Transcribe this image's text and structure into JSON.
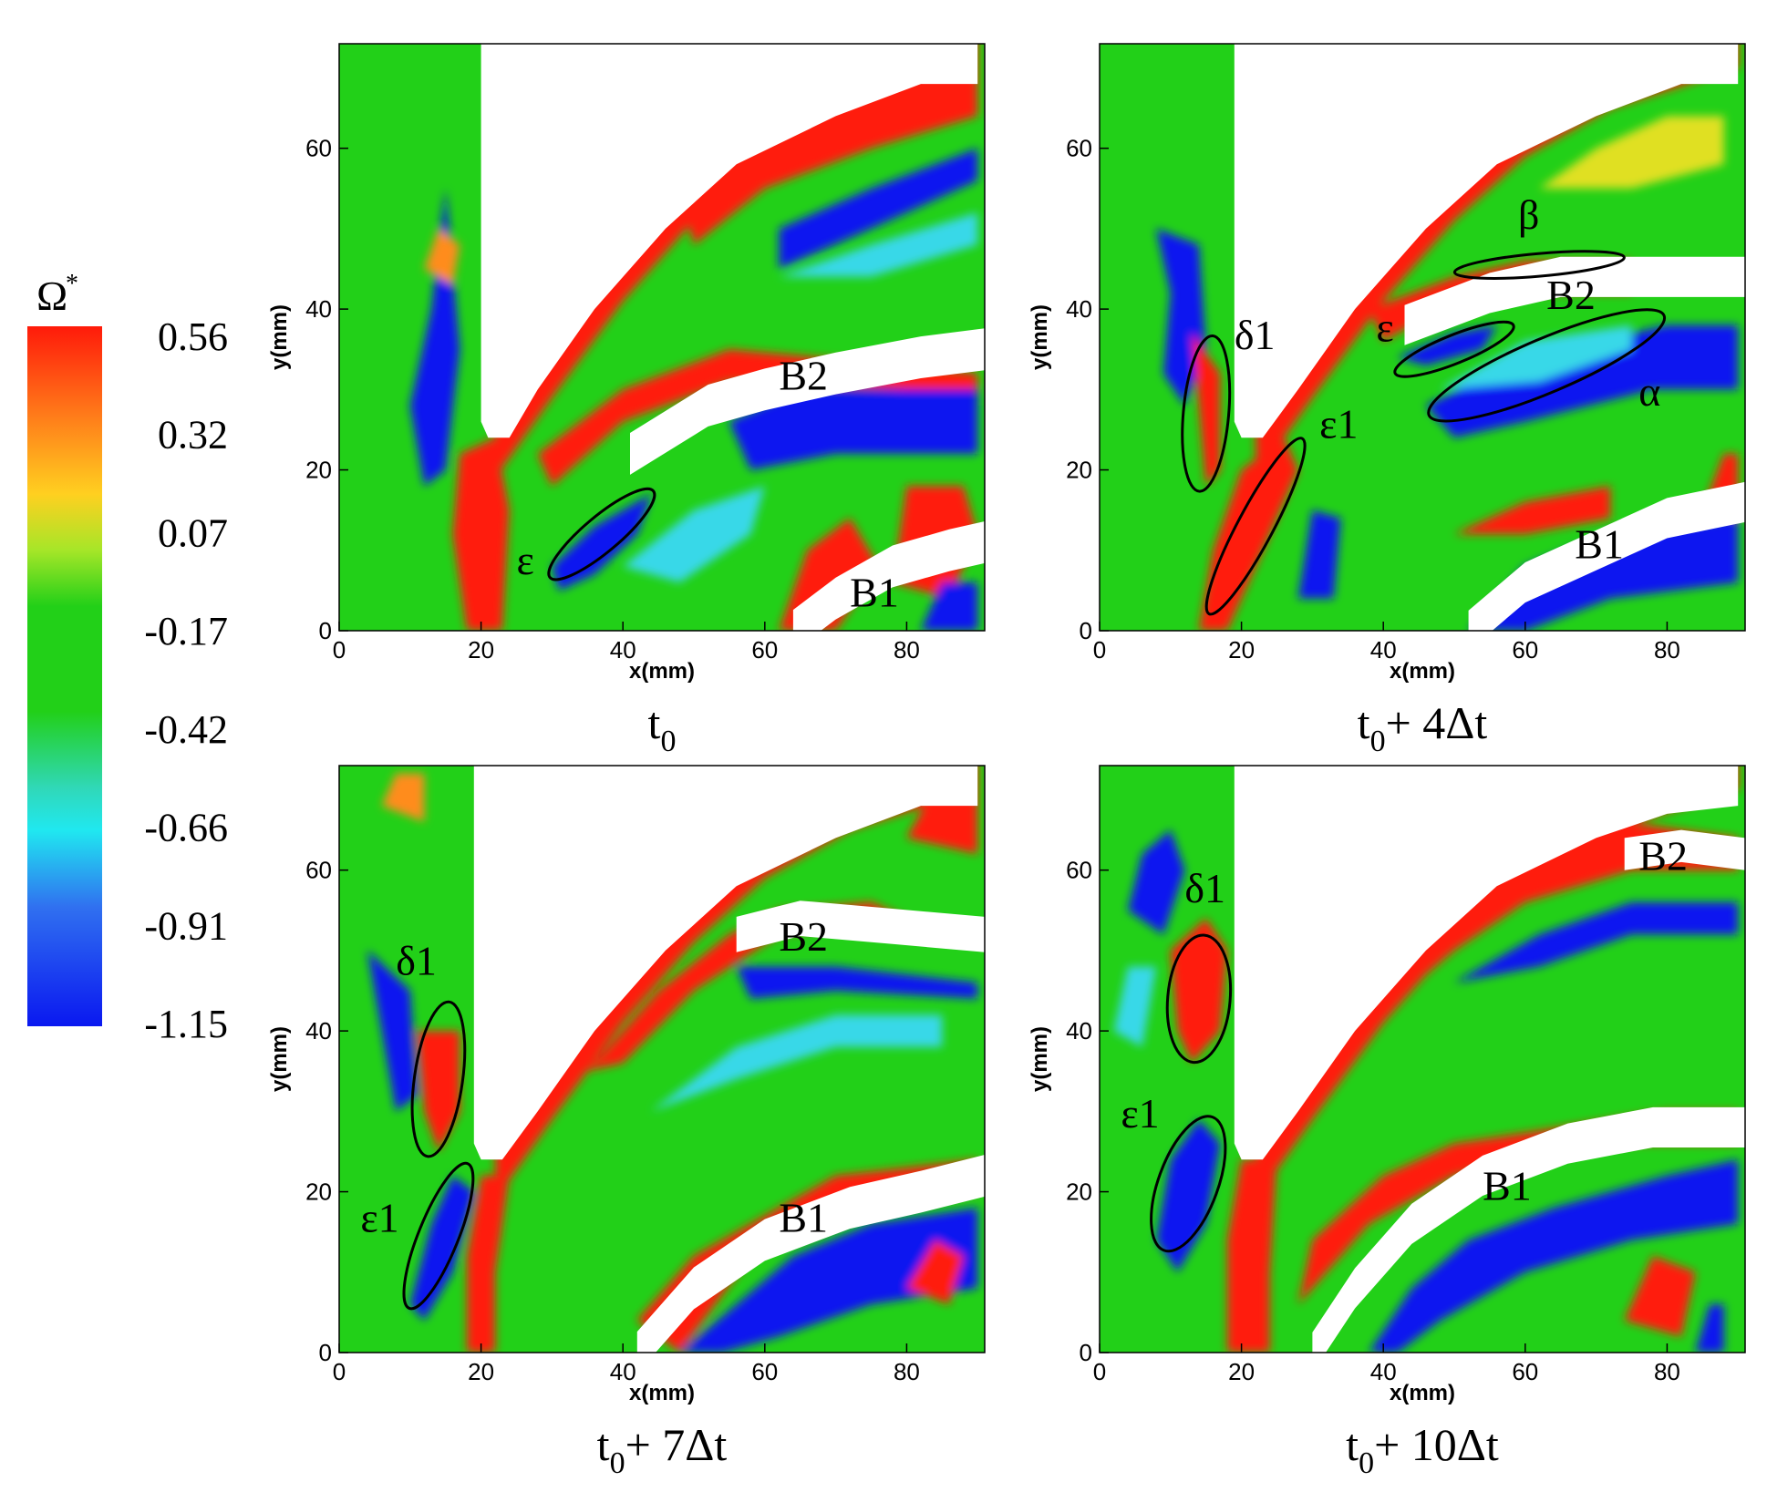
{
  "legend": {
    "symbol": "Ω",
    "superscript": "*",
    "ticks": [
      "0.56",
      "0.32",
      "0.07",
      "-0.17",
      "-0.42",
      "-0.66",
      "-0.91",
      "-1.15"
    ]
  },
  "colors": {
    "green": "#22d018",
    "red": "#ff1a0a",
    "blue": "#0a18f0",
    "cyan": "#38d8e8",
    "yellow": "#e0e020",
    "orange": "#ff8c1a",
    "white": "#ffffff"
  },
  "chart_data": {
    "type": "heatmap",
    "quantity": "Ω*",
    "colorbar": {
      "range": [
        -1.15,
        0.56
      ],
      "labels": [
        "0.56",
        "0.32",
        "0.07",
        "-0.17",
        "-0.42",
        "-0.66",
        "-0.91",
        "-1.15"
      ]
    },
    "xlabel": "x(mm)",
    "ylabel": "y(mm)",
    "xlim": [
      0,
      91
    ],
    "ylim": [
      0,
      73
    ],
    "xticks": [
      "0",
      "20",
      "40",
      "60",
      "80"
    ],
    "yticks": [
      "0",
      "20",
      "40",
      "60"
    ],
    "panels": [
      {
        "title_base": "t",
        "title_sub": "0",
        "title_rest": "",
        "annotations": [
          {
            "label": "ε",
            "cx": 37,
            "cy": 12,
            "rx": 9.5,
            "ry": 2.5,
            "angle": 40,
            "tx": 25,
            "ty": 7
          },
          {
            "label": "B2",
            "tx": 62,
            "ty": 30
          },
          {
            "label": "B1",
            "tx": 72,
            "ty": 3
          }
        ]
      },
      {
        "title_base": "t",
        "title_sub": "0",
        "title_rest": "+ 4Δt",
        "annotations": [
          {
            "label": "β",
            "cx": 62,
            "cy": 45.5,
            "rx": 12,
            "ry": 1.6,
            "angle": 5,
            "tx": 59,
            "ty": 50
          },
          {
            "label": "B2",
            "tx": 63,
            "ty": 40
          },
          {
            "label": "ε",
            "cx": 50,
            "cy": 35,
            "rx": 9,
            "ry": 2,
            "angle": 22,
            "tx": 39,
            "ty": 36
          },
          {
            "label": "δ1",
            "cx": 15,
            "cy": 27,
            "rx": 11,
            "ry": 3.2,
            "angle": 85,
            "tx": 19,
            "ty": 35
          },
          {
            "label": "ε1",
            "cx": 22,
            "cy": 13,
            "rx": 14,
            "ry": 2.5,
            "angle": 62,
            "tx": 31,
            "ty": 24
          },
          {
            "label": "α",
            "cx": 63,
            "cy": 33,
            "rx": 18,
            "ry": 3.8,
            "angle": 23,
            "tx": 76,
            "ty": 28
          },
          {
            "label": "B1",
            "tx": 67,
            "ty": 9
          }
        ]
      },
      {
        "title_base": "t",
        "title_sub": "0",
        "title_rest": "+ 7Δt",
        "annotations": [
          {
            "label": "δ1",
            "cx": 14,
            "cy": 34,
            "rx": 11,
            "ry": 3.4,
            "angle": 82,
            "tx": 8,
            "ty": 47
          },
          {
            "label": "ε1",
            "cx": 14,
            "cy": 14.5,
            "rx": 11,
            "ry": 2.8,
            "angle": 68,
            "tx": 3,
            "ty": 15
          },
          {
            "label": "B2",
            "tx": 62,
            "ty": 50
          },
          {
            "label": "B1",
            "tx": 62,
            "ty": 15
          }
        ]
      },
      {
        "title_base": "t",
        "title_sub": "0",
        "title_rest": "+ 10Δt",
        "annotations": [
          {
            "label": "δ1",
            "cx": 14,
            "cy": 44,
            "rx": 9,
            "ry": 4.4,
            "angle": 85,
            "tx": 12,
            "ty": 56
          },
          {
            "label": "ε1",
            "cx": 12.5,
            "cy": 21,
            "rx": 10,
            "ry": 4.2,
            "angle": 70,
            "tx": 3,
            "ty": 28
          },
          {
            "label": "B2",
            "tx": 76,
            "ty": 60
          },
          {
            "label": "B1",
            "tx": 54,
            "ty": 19
          }
        ]
      }
    ]
  }
}
